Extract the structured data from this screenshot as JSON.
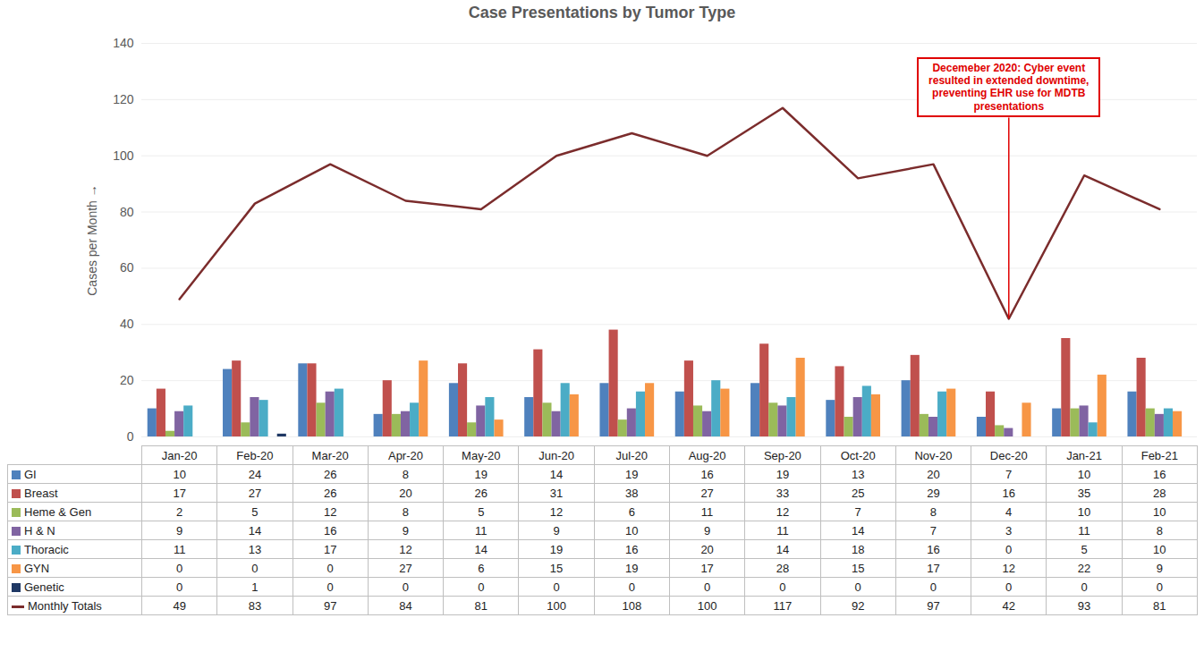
{
  "chart_data": {
    "type": "bar",
    "title": "Case Presentations by Tumor Type",
    "y_label": "Cases per Month",
    "categories": [
      "Jan-20",
      "Feb-20",
      "Mar-20",
      "Apr-20",
      "May-20",
      "Jun-20",
      "Jul-20",
      "Aug-20",
      "Sep-20",
      "Oct-20",
      "Nov-20",
      "Dec-20",
      "Jan-21",
      "Feb-21"
    ],
    "series": [
      {
        "name": "GI",
        "type": "bar",
        "color": "#4f81bd",
        "values": [
          10,
          24,
          26,
          8,
          19,
          14,
          19,
          16,
          19,
          13,
          20,
          7,
          10,
          16
        ]
      },
      {
        "name": "Breast",
        "type": "bar",
        "color": "#c0504d",
        "values": [
          17,
          27,
          26,
          20,
          26,
          31,
          38,
          27,
          33,
          25,
          29,
          16,
          35,
          28
        ]
      },
      {
        "name": "Heme & Gen",
        "type": "bar",
        "color": "#9bbb59",
        "values": [
          2,
          5,
          12,
          8,
          5,
          12,
          6,
          11,
          12,
          7,
          8,
          4,
          10,
          10
        ]
      },
      {
        "name": "H & N",
        "type": "bar",
        "color": "#8064a2",
        "values": [
          9,
          14,
          16,
          9,
          11,
          9,
          10,
          9,
          11,
          14,
          7,
          3,
          11,
          8
        ]
      },
      {
        "name": "Thoracic",
        "type": "bar",
        "color": "#4bacc6",
        "values": [
          11,
          13,
          17,
          12,
          14,
          19,
          16,
          20,
          14,
          18,
          16,
          0,
          5,
          10
        ]
      },
      {
        "name": "GYN",
        "type": "bar",
        "color": "#f79646",
        "values": [
          0,
          0,
          0,
          27,
          6,
          15,
          19,
          17,
          28,
          15,
          17,
          12,
          22,
          9
        ]
      },
      {
        "name": "Genetic",
        "type": "bar",
        "color": "#1f3864",
        "values": [
          0,
          1,
          0,
          0,
          0,
          0,
          0,
          0,
          0,
          0,
          0,
          0,
          0,
          0
        ]
      },
      {
        "name": "Monthly Totals",
        "type": "line",
        "color": "#7b2c2c",
        "values": [
          49,
          83,
          97,
          84,
          81,
          100,
          108,
          100,
          117,
          92,
          97,
          42,
          93,
          81
        ]
      }
    ],
    "annotation": {
      "text": "Decemeber 2020: Cyber event resulted in extended downtime, preventing EHR use for MDTB presentations",
      "category": "Dec-20",
      "series": "Monthly Totals"
    },
    "ylim": [
      0,
      140
    ],
    "yticks": [
      0,
      20,
      40,
      60,
      80,
      100,
      120,
      140
    ],
    "grid": true,
    "tick_labels": "y"
  }
}
